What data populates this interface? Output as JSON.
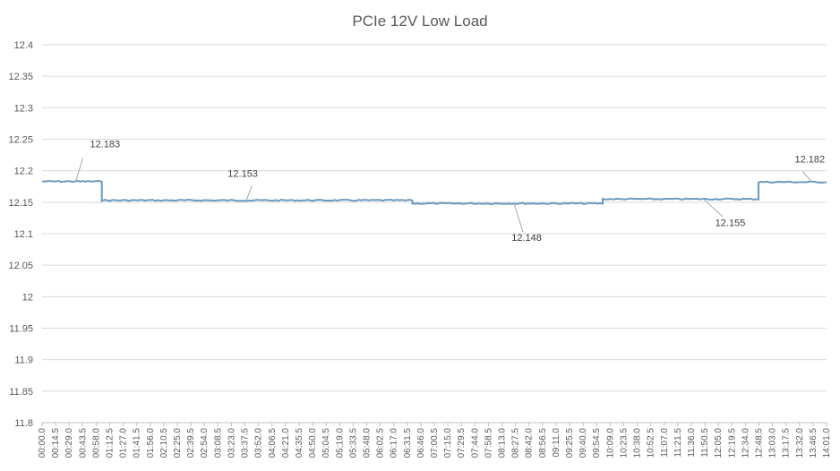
{
  "chart_data": {
    "type": "line",
    "title": "PCIe 12V Low Load",
    "xlabel": "",
    "ylabel": "",
    "ylim": [
      11.8,
      12.4
    ],
    "ytick_step": 0.05,
    "yticks": [
      "12.4",
      "12.35",
      "12.3",
      "12.25",
      "12.2",
      "12.15",
      "12.1",
      "12.05",
      "12",
      "11.95",
      "11.9",
      "11.85",
      "11.8"
    ],
    "grid": true,
    "legend": "none",
    "colors": {
      "series": "#6a99bf",
      "grid": "#d9d9d9",
      "text": "#595959"
    },
    "x_categories": [
      "00:00.0",
      "00:14.5",
      "00:29.0",
      "00:43.5",
      "00:58.0",
      "01:12.5",
      "01:27.0",
      "01:41.5",
      "01:56.0",
      "02:10.5",
      "02:25.0",
      "02:39.5",
      "02:54.0",
      "03:08.5",
      "03:23.0",
      "03:37.5",
      "03:52.0",
      "04:06.5",
      "04:21.0",
      "04:35.5",
      "04:50.0",
      "05:04.5",
      "05:19.0",
      "05:33.5",
      "05:48.0",
      "06:02.5",
      "06:17.0",
      "06:31.5",
      "06:46.0",
      "07:00.5",
      "07:15.0",
      "07:29.5",
      "07:44.0",
      "07:58.5",
      "08:13.0",
      "08:27.5",
      "08:42.0",
      "08:56.5",
      "09:11.0",
      "09:25.5",
      "09:40.0",
      "09:54.5",
      "10:09.0",
      "10:23.5",
      "10:38.0",
      "10:52.5",
      "11:07.0",
      "11:21.5",
      "11:36.0",
      "11:50.5",
      "12:05.0",
      "12:19.5",
      "12:34.0",
      "12:48.5",
      "13:03.0",
      "13:17.5",
      "13:32.0",
      "13:46.5",
      "14:01.0"
    ],
    "x_range_seconds": [
      0,
      841
    ],
    "series": [
      {
        "segments": [
          {
            "start_s": 0,
            "end_s": 64,
            "value": 12.183
          },
          {
            "start_s": 64,
            "end_s": 397,
            "value": 12.153
          },
          {
            "start_s": 397,
            "end_s": 601,
            "value": 12.148
          },
          {
            "start_s": 601,
            "end_s": 768,
            "value": 12.155
          },
          {
            "start_s": 768,
            "end_s": 841,
            "value": 12.182
          }
        ]
      }
    ],
    "annotations": [
      {
        "text": "12.183",
        "x_s": 36,
        "value": 12.183
      },
      {
        "text": "12.153",
        "x_s": 219,
        "value": 12.153
      },
      {
        "text": "12.148",
        "x_s": 506,
        "value": 12.148
      },
      {
        "text": "12.155",
        "x_s": 709,
        "value": 12.155
      },
      {
        "text": "12.182",
        "x_s": 825,
        "value": 12.182
      }
    ]
  }
}
